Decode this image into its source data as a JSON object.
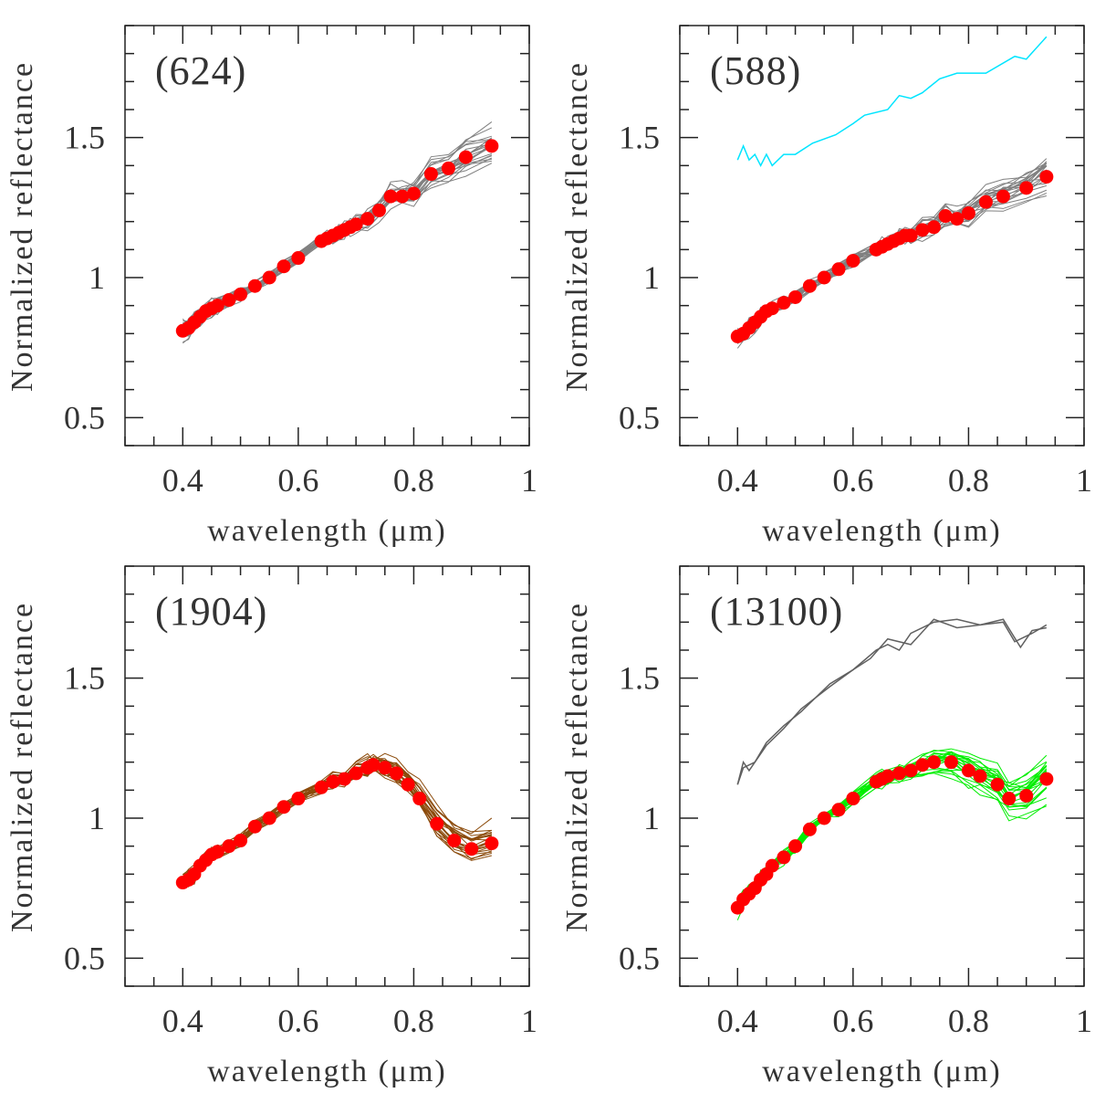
{
  "chart_data": [
    {
      "type": "line",
      "title": "(624)",
      "xlabel": "wavelength (μm)",
      "ylabel": "Normalized reflectance",
      "xlim": [
        0.3,
        1.0
      ],
      "ylim": [
        0.4,
        1.9
      ],
      "xticks": [
        "0.4",
        "0.6",
        "0.8",
        "1"
      ],
      "yticks": [
        "0.5",
        "1",
        "1.5"
      ],
      "grid": false,
      "spectra_color": "#808080",
      "mean_points": {
        "color": "#ff0000",
        "x": [
          0.4,
          0.41,
          0.42,
          0.43,
          0.44,
          0.45,
          0.46,
          0.48,
          0.5,
          0.525,
          0.55,
          0.575,
          0.6,
          0.64,
          0.65,
          0.66,
          0.67,
          0.68,
          0.69,
          0.7,
          0.72,
          0.74,
          0.76,
          0.78,
          0.8,
          0.83,
          0.86,
          0.89,
          0.935
        ],
        "y": [
          0.81,
          0.82,
          0.84,
          0.86,
          0.88,
          0.89,
          0.9,
          0.92,
          0.94,
          0.97,
          1.0,
          1.04,
          1.07,
          1.13,
          1.14,
          1.15,
          1.16,
          1.17,
          1.18,
          1.19,
          1.21,
          1.24,
          1.29,
          1.29,
          1.3,
          1.37,
          1.39,
          1.43,
          1.47
        ]
      },
      "outliers": []
    },
    {
      "type": "line",
      "title": "(588)",
      "xlabel": "wavelength (μm)",
      "ylabel": "Normalized reflectance",
      "xlim": [
        0.3,
        1.0
      ],
      "ylim": [
        0.4,
        1.9
      ],
      "xticks": [
        "0.4",
        "0.6",
        "0.8",
        "1"
      ],
      "yticks": [
        "0.5",
        "1",
        "1.5"
      ],
      "grid": false,
      "spectra_color": "#808080",
      "mean_points": {
        "color": "#ff0000",
        "x": [
          0.4,
          0.41,
          0.42,
          0.43,
          0.44,
          0.45,
          0.46,
          0.48,
          0.5,
          0.525,
          0.55,
          0.575,
          0.6,
          0.64,
          0.65,
          0.66,
          0.67,
          0.68,
          0.69,
          0.7,
          0.72,
          0.74,
          0.76,
          0.78,
          0.8,
          0.83,
          0.86,
          0.9,
          0.935
        ],
        "y": [
          0.79,
          0.8,
          0.82,
          0.84,
          0.86,
          0.88,
          0.89,
          0.91,
          0.93,
          0.97,
          1.0,
          1.03,
          1.06,
          1.1,
          1.11,
          1.12,
          1.13,
          1.14,
          1.15,
          1.15,
          1.17,
          1.18,
          1.22,
          1.21,
          1.23,
          1.27,
          1.29,
          1.32,
          1.36
        ]
      },
      "outliers": [
        {
          "color": "#00e5ff",
          "x": [
            0.4,
            0.41,
            0.42,
            0.43,
            0.44,
            0.45,
            0.46,
            0.48,
            0.5,
            0.53,
            0.57,
            0.6,
            0.62,
            0.66,
            0.68,
            0.7,
            0.72,
            0.75,
            0.78,
            0.83,
            0.88,
            0.9,
            0.935
          ],
          "y": [
            1.42,
            1.47,
            1.42,
            1.44,
            1.4,
            1.44,
            1.4,
            1.44,
            1.44,
            1.48,
            1.51,
            1.55,
            1.58,
            1.6,
            1.65,
            1.64,
            1.66,
            1.71,
            1.73,
            1.73,
            1.79,
            1.78,
            1.86
          ]
        }
      ]
    },
    {
      "type": "line",
      "title": "(1904)",
      "xlabel": "wavelength (μm)",
      "ylabel": "Normalized reflectance",
      "xlim": [
        0.3,
        1.0
      ],
      "ylim": [
        0.4,
        1.9
      ],
      "xticks": [
        "0.4",
        "0.6",
        "0.8",
        "1"
      ],
      "yticks": [
        "0.5",
        "1",
        "1.5"
      ],
      "grid": false,
      "spectra_color": "#8b4a0a",
      "mean_points": {
        "color": "#ff0000",
        "x": [
          0.4,
          0.41,
          0.42,
          0.43,
          0.44,
          0.45,
          0.46,
          0.48,
          0.5,
          0.525,
          0.55,
          0.575,
          0.6,
          0.64,
          0.66,
          0.68,
          0.7,
          0.72,
          0.73,
          0.75,
          0.77,
          0.79,
          0.81,
          0.84,
          0.87,
          0.9,
          0.935
        ],
        "y": [
          0.77,
          0.78,
          0.8,
          0.83,
          0.85,
          0.87,
          0.88,
          0.9,
          0.92,
          0.97,
          1.0,
          1.04,
          1.07,
          1.11,
          1.13,
          1.14,
          1.16,
          1.18,
          1.19,
          1.18,
          1.16,
          1.12,
          1.07,
          0.98,
          0.92,
          0.89,
          0.91
        ]
      },
      "outliers": []
    },
    {
      "type": "line",
      "title": "(13100)",
      "xlabel": "wavelength (μm)",
      "ylabel": "Normalized reflectance",
      "xlim": [
        0.3,
        1.0
      ],
      "ylim": [
        0.4,
        1.9
      ],
      "xticks": [
        "0.4",
        "0.6",
        "0.8",
        "1"
      ],
      "yticks": [
        "0.5",
        "1",
        "1.5"
      ],
      "grid": false,
      "spectra_color": "#00ee00",
      "mean_points": {
        "color": "#ff0000",
        "x": [
          0.4,
          0.41,
          0.42,
          0.43,
          0.44,
          0.45,
          0.46,
          0.48,
          0.5,
          0.525,
          0.55,
          0.575,
          0.6,
          0.64,
          0.65,
          0.66,
          0.68,
          0.7,
          0.72,
          0.74,
          0.77,
          0.8,
          0.82,
          0.85,
          0.87,
          0.9,
          0.935
        ],
        "y": [
          0.68,
          0.71,
          0.73,
          0.75,
          0.78,
          0.8,
          0.83,
          0.86,
          0.9,
          0.96,
          1.0,
          1.03,
          1.07,
          1.13,
          1.14,
          1.15,
          1.16,
          1.17,
          1.19,
          1.2,
          1.2,
          1.17,
          1.15,
          1.12,
          1.07,
          1.08,
          1.14
        ]
      },
      "outliers": [
        {
          "color": "#606060",
          "x": [
            0.4,
            0.41,
            0.43,
            0.45,
            0.48,
            0.51,
            0.56,
            0.6,
            0.64,
            0.66,
            0.68,
            0.7,
            0.74,
            0.78,
            0.82,
            0.86,
            0.88,
            0.91,
            0.935
          ],
          "y": [
            1.12,
            1.18,
            1.2,
            1.27,
            1.33,
            1.38,
            1.48,
            1.53,
            1.6,
            1.62,
            1.6,
            1.66,
            1.7,
            1.71,
            1.69,
            1.7,
            1.63,
            1.66,
            1.69
          ]
        },
        {
          "color": "#606060",
          "x": [
            0.4,
            0.41,
            0.42,
            0.45,
            0.48,
            0.51,
            0.56,
            0.6,
            0.63,
            0.66,
            0.7,
            0.74,
            0.78,
            0.82,
            0.86,
            0.89,
            0.91,
            0.935
          ],
          "y": [
            1.12,
            1.2,
            1.17,
            1.26,
            1.32,
            1.39,
            1.47,
            1.53,
            1.57,
            1.64,
            1.62,
            1.71,
            1.68,
            1.69,
            1.71,
            1.61,
            1.67,
            1.68
          ]
        }
      ]
    }
  ]
}
